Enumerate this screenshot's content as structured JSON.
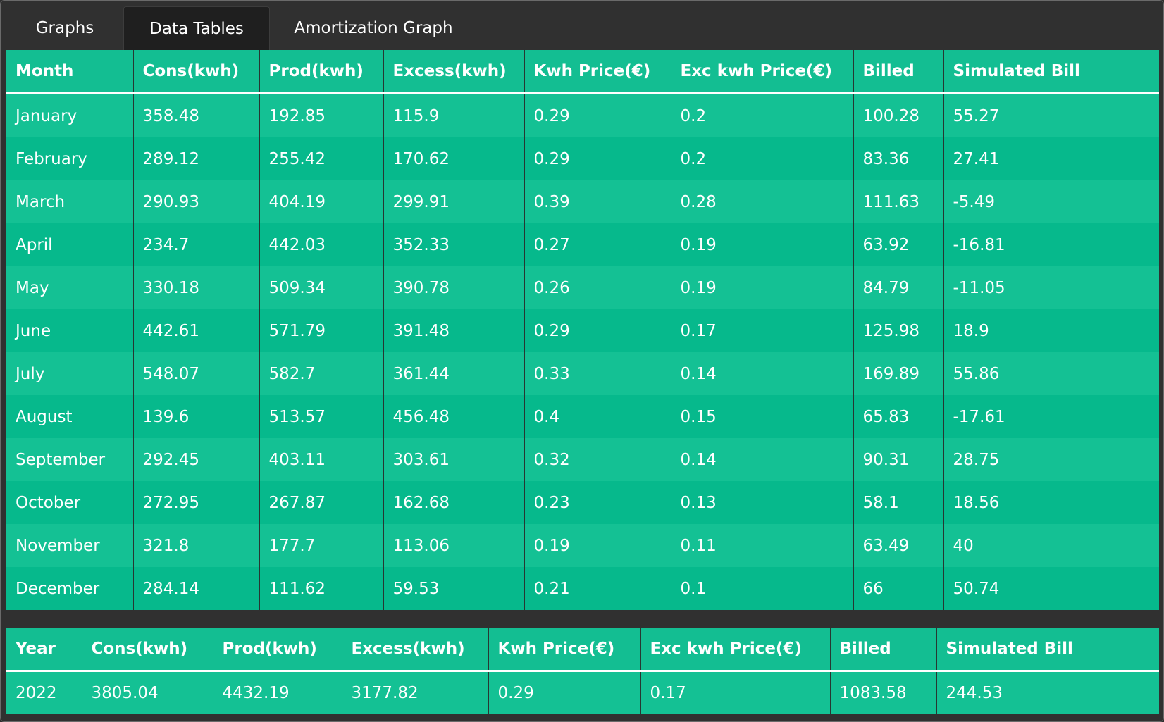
{
  "tabs": [
    {
      "label": "Graphs",
      "active": false
    },
    {
      "label": "Data Tables",
      "active": true
    },
    {
      "label": "Amortization Graph",
      "active": false
    }
  ],
  "monthly": {
    "headers": [
      "Month",
      "Cons(kwh)",
      "Prod(kwh)",
      "Excess(kwh)",
      "Kwh Price(€)",
      "Exc kwh Price(€)",
      "Billed",
      "Simulated Bill"
    ],
    "rows": [
      [
        "January",
        "358.48",
        "192.85",
        "115.9",
        "0.29",
        "0.2",
        "100.28",
        "55.27"
      ],
      [
        "February",
        "289.12",
        "255.42",
        "170.62",
        "0.29",
        "0.2",
        "83.36",
        "27.41"
      ],
      [
        "March",
        "290.93",
        "404.19",
        "299.91",
        "0.39",
        "0.28",
        "111.63",
        "-5.49"
      ],
      [
        "April",
        "234.7",
        "442.03",
        "352.33",
        "0.27",
        "0.19",
        "63.92",
        "-16.81"
      ],
      [
        "May",
        "330.18",
        "509.34",
        "390.78",
        "0.26",
        "0.19",
        "84.79",
        "-11.05"
      ],
      [
        "June",
        "442.61",
        "571.79",
        "391.48",
        "0.29",
        "0.17",
        "125.98",
        "18.9"
      ],
      [
        "July",
        "548.07",
        "582.7",
        "361.44",
        "0.33",
        "0.14",
        "169.89",
        "55.86"
      ],
      [
        "August",
        "139.6",
        "513.57",
        "456.48",
        "0.4",
        "0.15",
        "65.83",
        "-17.61"
      ],
      [
        "September",
        "292.45",
        "403.11",
        "303.61",
        "0.32",
        "0.14",
        "90.31",
        "28.75"
      ],
      [
        "October",
        "272.95",
        "267.87",
        "162.68",
        "0.23",
        "0.13",
        "58.1",
        "18.56"
      ],
      [
        "November",
        "321.8",
        "177.7",
        "113.06",
        "0.19",
        "0.11",
        "63.49",
        "40"
      ],
      [
        "December",
        "284.14",
        "111.62",
        "59.53",
        "0.21",
        "0.1",
        "66",
        "50.74"
      ]
    ]
  },
  "yearly": {
    "headers": [
      "Year",
      "Cons(kwh)",
      "Prod(kwh)",
      "Excess(kwh)",
      "Kwh Price(€)",
      "Exc kwh Price(€)",
      "Billed",
      "Simulated Bill"
    ],
    "rows": [
      [
        "2022",
        "3805.04",
        "4432.19",
        "3177.82",
        "0.29",
        "0.17",
        "1083.58",
        "244.53"
      ]
    ]
  },
  "colors": {
    "background": "#303030",
    "tab_active": "#1f1f1f",
    "table_header": "#13be92",
    "row_light": "#14c194",
    "row_dark": "#06b98c"
  }
}
